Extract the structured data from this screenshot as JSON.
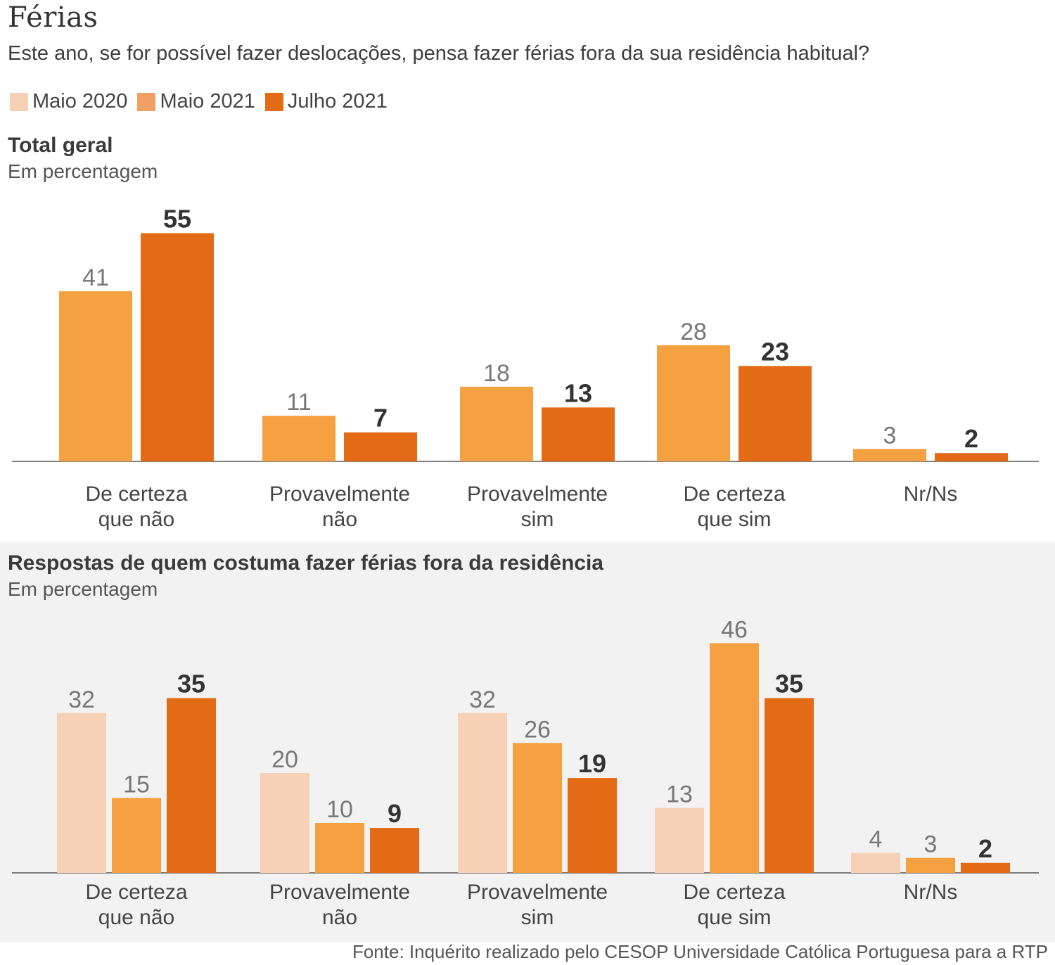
{
  "header": {
    "title": "Férias",
    "subtitle": "Este ano, se for possível fazer deslocações, pensa fazer férias fora da sua residência habitual?"
  },
  "legend": [
    {
      "label": "Maio 2020",
      "color": "#f6d1b5"
    },
    {
      "label": "Maio 2021",
      "color": "#f5a142"
    },
    {
      "label": "Julho 2021",
      "color": "#e36b16"
    }
  ],
  "source": "Fonte: Inquérito realizado pelo CESOP Universidade Católica Portuguesa para a RTP",
  "chart_data": [
    {
      "type": "bar",
      "title": "Total geral",
      "ylabel": "Em percentagem",
      "xlabel": "",
      "categories": [
        "De certeza\nque não",
        "Provavelmente\nnão",
        "Provavelmente\nsim",
        "De certeza\nque sim",
        "Nr/Ns"
      ],
      "series": [
        {
          "name": "Maio 2021",
          "color": "#f5a142",
          "values": [
            41,
            11,
            18,
            28,
            3
          ]
        },
        {
          "name": "Julho 2021",
          "color": "#e36b16",
          "values": [
            55,
            7,
            13,
            23,
            2
          ],
          "bold_labels": true
        }
      ],
      "ylim": [
        0,
        55
      ],
      "grid": false,
      "legend": "top-left"
    },
    {
      "type": "bar",
      "title": "Respostas de quem costuma fazer férias fora da residência",
      "ylabel": "Em percentagem",
      "xlabel": "",
      "categories": [
        "De certeza\nque não",
        "Provavelmente\nnão",
        "Provavelmente\nsim",
        "De certeza\nque sim",
        "Nr/Ns"
      ],
      "series": [
        {
          "name": "Maio 2020",
          "color": "#f6d1b5",
          "values": [
            32,
            20,
            32,
            13,
            4
          ]
        },
        {
          "name": "Maio 2021",
          "color": "#f5a142",
          "values": [
            15,
            10,
            26,
            46,
            3
          ]
        },
        {
          "name": "Julho 2021",
          "color": "#e36b16",
          "values": [
            35,
            9,
            19,
            35,
            2
          ],
          "bold_labels": true
        }
      ],
      "ylim": [
        0,
        46
      ],
      "grid": false,
      "legend": "top-left"
    }
  ]
}
